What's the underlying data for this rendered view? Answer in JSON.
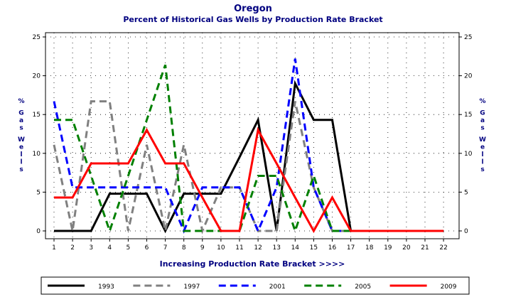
{
  "chart_data": {
    "type": "line",
    "title": "Oregon",
    "subtitle": "Percent of Historical Gas Wells by Production Rate Bracket",
    "xlabel": "Increasing Production Rate Bracket >>>>",
    "ylabel_left": "% Gas Wells",
    "ylabel_right": "% Gas Wells",
    "x": [
      1,
      2,
      3,
      4,
      5,
      6,
      7,
      8,
      9,
      10,
      11,
      12,
      13,
      14,
      15,
      16,
      17,
      18,
      19,
      20,
      21,
      22
    ],
    "ylim": [
      0,
      25
    ],
    "yticks": [
      0,
      5,
      10,
      15,
      20,
      25
    ],
    "grid": "dotted",
    "legend_position": "bottom",
    "series": [
      {
        "name": "1993",
        "color": "#000000",
        "dash": "solid",
        "values": [
          0,
          0,
          0,
          4.8,
          4.8,
          4.8,
          0,
          4.8,
          4.8,
          4.8,
          9.5,
          14.3,
          0,
          19,
          14.3,
          14.3,
          0,
          0,
          0,
          0,
          0,
          0
        ]
      },
      {
        "name": "1997",
        "color": "#808080",
        "dash": "dashed",
        "values": [
          11.1,
          0,
          16.7,
          16.7,
          0,
          11.1,
          0,
          11.1,
          0,
          5.6,
          5.6,
          0,
          0,
          16.7,
          5.6,
          0,
          0,
          0,
          0,
          0,
          0,
          0
        ]
      },
      {
        "name": "2001",
        "color": "#0000ff",
        "dash": "dashed",
        "values": [
          16.7,
          5.6,
          5.6,
          5.6,
          5.6,
          5.6,
          5.6,
          0,
          5.6,
          5.6,
          5.6,
          0,
          5.6,
          22.2,
          5.6,
          0,
          0,
          0,
          0,
          0,
          0,
          0
        ]
      },
      {
        "name": "2005",
        "color": "#008000",
        "dash": "dashed",
        "values": [
          14.3,
          14.3,
          7.1,
          0,
          7.1,
          14.3,
          21.4,
          0,
          0,
          0,
          0,
          7.1,
          7.1,
          0,
          7.1,
          0,
          0,
          0,
          0,
          0,
          0,
          0
        ]
      },
      {
        "name": "2009",
        "color": "#ff0000",
        "dash": "solid",
        "values": [
          4.3,
          4.3,
          8.7,
          8.7,
          8.7,
          13,
          8.7,
          8.7,
          4.3,
          0,
          0,
          13,
          8.7,
          4.3,
          0,
          4.3,
          0,
          0,
          0,
          0,
          0,
          0
        ]
      }
    ]
  }
}
